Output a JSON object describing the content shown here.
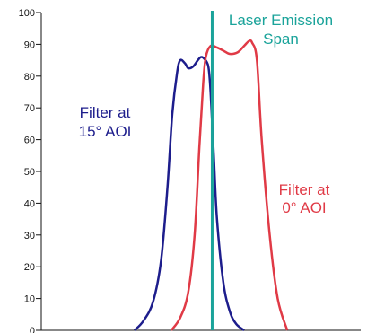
{
  "chart_data": {
    "type": "line",
    "title": "",
    "xlabel": "",
    "ylabel": "",
    "ylim": [
      0,
      100
    ],
    "xlim": [
      0,
      100
    ],
    "yticks": [
      0,
      10,
      20,
      30,
      40,
      50,
      60,
      70,
      80,
      90,
      100
    ],
    "grid": false,
    "series": [
      {
        "name": "Filter at 15° AOI",
        "color": "#1d1d8c",
        "x": [
          29.2,
          32,
          35,
          37.5,
          39.5,
          41,
          42.5,
          43.5,
          45,
          46,
          47.5,
          49,
          50,
          51,
          52.3,
          53,
          54,
          55,
          57,
          59,
          61,
          63.5
        ],
        "y": [
          0,
          3,
          9,
          22,
          45,
          68,
          81,
          85,
          84,
          82.5,
          83,
          85,
          86,
          85.5,
          83,
          75,
          55,
          35,
          15,
          6,
          2,
          0
        ]
      },
      {
        "name": "Filter at 0° AOI",
        "color": "#e03a46",
        "x": [
          40.7,
          43.5,
          46,
          48,
          49.5,
          50.7,
          51.5,
          53,
          55,
          57,
          59,
          61.5,
          63.5,
          65,
          66,
          67.5,
          69,
          71.5,
          74,
          77
        ],
        "y": [
          0,
          4,
          12,
          30,
          58,
          78,
          86,
          89.5,
          89,
          88,
          87,
          87.5,
          89.5,
          91,
          90.5,
          85,
          60,
          30,
          10,
          0
        ]
      }
    ],
    "annotations": {
      "laser_line": {
        "x": 53.5,
        "color": "#1aa39a",
        "label_line1": "Laser Emission",
        "label_line2": "Span"
      },
      "filter15": {
        "line1": "Filter at",
        "line2": "15° AOI"
      },
      "filter0": {
        "line1": "Filter at",
        "line2": "0° AOI"
      }
    }
  }
}
